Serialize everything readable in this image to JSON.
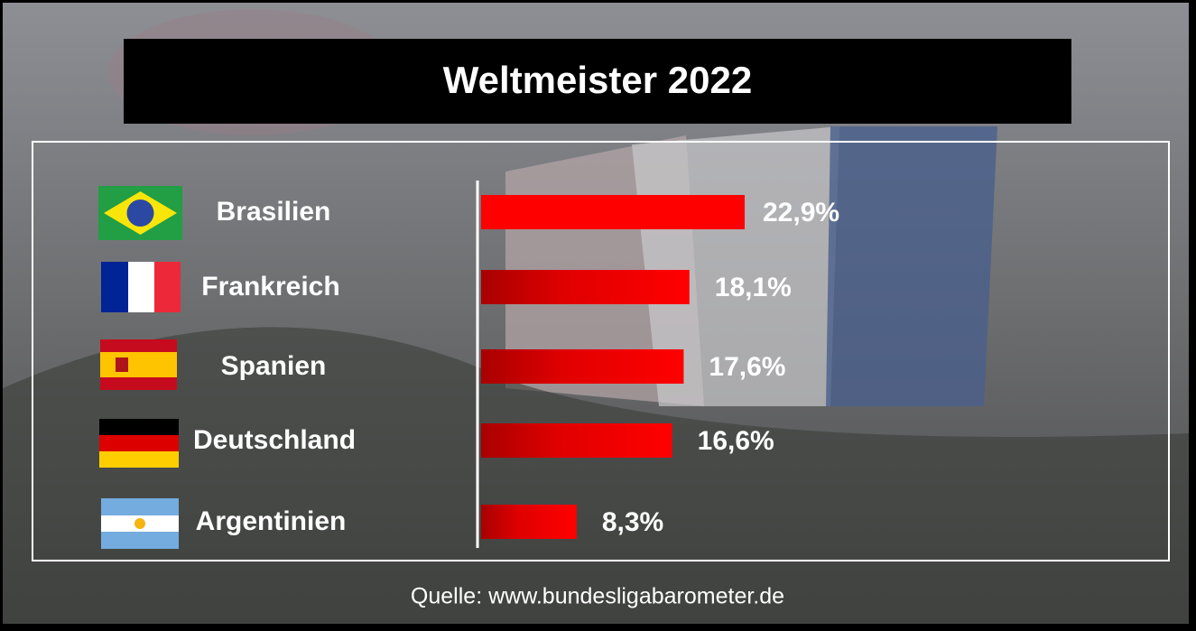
{
  "chart_data": {
    "type": "bar",
    "orientation": "horizontal",
    "title": "Weltmeister 2022",
    "categories": [
      "Brasilien",
      "Frankreich",
      "Spanien",
      "Deutschland",
      "Argentinien"
    ],
    "values": [
      22.9,
      18.1,
      17.6,
      16.6,
      8.3
    ],
    "value_labels": [
      "22,9%",
      "18,1%",
      "17,6%",
      "16,6%",
      "8,3%"
    ],
    "color": "#ff0000",
    "source": "Quelle: www.bundesligabarometer.de"
  }
}
